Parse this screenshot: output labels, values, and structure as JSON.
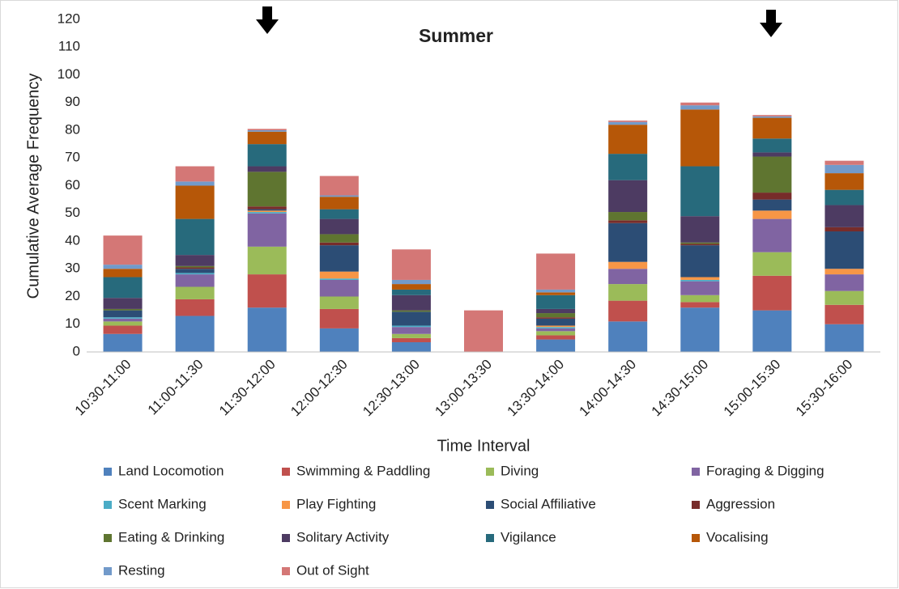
{
  "chart_data": {
    "type": "stacked_bar",
    "title": "Summer",
    "x_label": "Time Interval",
    "y_label": "Cumulative Average Frequency",
    "categories": [
      "10:30-11:00",
      "11:00-11:30",
      "11:30-12:00",
      "12:00-12:30",
      "12:30-13:00",
      "13:00-13:30",
      "13:30-14:00",
      "14:00-14:30",
      "14:30-15:00",
      "15:00-15:30",
      "15:30-16:00"
    ],
    "ylim": [
      0,
      120
    ],
    "yticks": [
      0,
      10,
      20,
      30,
      40,
      50,
      60,
      70,
      80,
      90,
      100,
      110,
      120
    ],
    "grid": false,
    "series": [
      {
        "name": "Land Locomotion",
        "color": "#4f81bd",
        "values": [
          6.5,
          13,
          16,
          8.5,
          3.5,
          0,
          4.5,
          11,
          16,
          15,
          10
        ]
      },
      {
        "name": "Swimming & Paddling",
        "color": "#c0504d",
        "values": [
          3,
          6,
          12,
          7,
          1.5,
          0,
          1.5,
          7.5,
          2,
          12.5,
          7
        ]
      },
      {
        "name": "Diving",
        "color": "#9bbb59",
        "values": [
          1.5,
          4.5,
          10,
          4.5,
          1.5,
          0,
          1.5,
          6,
          2.5,
          8.5,
          5
        ]
      },
      {
        "name": "Foraging & Digging",
        "color": "#8064a2",
        "values": [
          1,
          4.5,
          12,
          6,
          2.5,
          0,
          1,
          5.5,
          5,
          12,
          6
        ]
      },
      {
        "name": "Scent Marking",
        "color": "#4bacc6",
        "values": [
          0.5,
          0.5,
          0.5,
          0.5,
          0.5,
          0,
          0.5,
          0,
          0.5,
          0,
          0
        ]
      },
      {
        "name": "Play Fighting",
        "color": "#f79646",
        "values": [
          0,
          0,
          0.5,
          2.5,
          0,
          0,
          0.5,
          2.5,
          1,
          3,
          2
        ]
      },
      {
        "name": "Social Affiliative",
        "color": "#2c4d75",
        "values": [
          2.5,
          1.5,
          0.5,
          9.5,
          5,
          0,
          2.5,
          14,
          11.5,
          4,
          13.5
        ]
      },
      {
        "name": "Aggression",
        "color": "#772c2a",
        "values": [
          0,
          0.5,
          1,
          1,
          0,
          0,
          0.5,
          1,
          0.5,
          2.5,
          1.5
        ]
      },
      {
        "name": "Eating & Drinking",
        "color": "#5f7530",
        "values": [
          0.5,
          0.5,
          12.5,
          3,
          0.5,
          0,
          1.5,
          3,
          0.5,
          13,
          0
        ]
      },
      {
        "name": "Solitary Activity",
        "color": "#4d3b62",
        "values": [
          4,
          4,
          2,
          5.5,
          5.5,
          0,
          1.5,
          11.5,
          9.5,
          1.5,
          8
        ]
      },
      {
        "name": "Vigilance",
        "color": "#276a7c",
        "values": [
          7.5,
          13,
          8,
          3.5,
          2,
          0,
          5,
          9.5,
          18,
          5,
          5.5
        ]
      },
      {
        "name": "Vocalising",
        "color": "#b65708",
        "values": [
          3,
          12,
          4.5,
          4.5,
          2,
          0,
          1,
          10.5,
          20.5,
          7.5,
          6
        ]
      },
      {
        "name": "Resting",
        "color": "#729aca",
        "values": [
          1.5,
          1.5,
          0.5,
          0.5,
          1.5,
          0,
          1,
          1,
          1.5,
          0.5,
          3
        ]
      },
      {
        "name": "Out of Sight",
        "color": "#d47776",
        "values": [
          10.5,
          5.5,
          0.5,
          7,
          11,
          15,
          13,
          0.5,
          1,
          0.5,
          1.5
        ]
      }
    ]
  }
}
